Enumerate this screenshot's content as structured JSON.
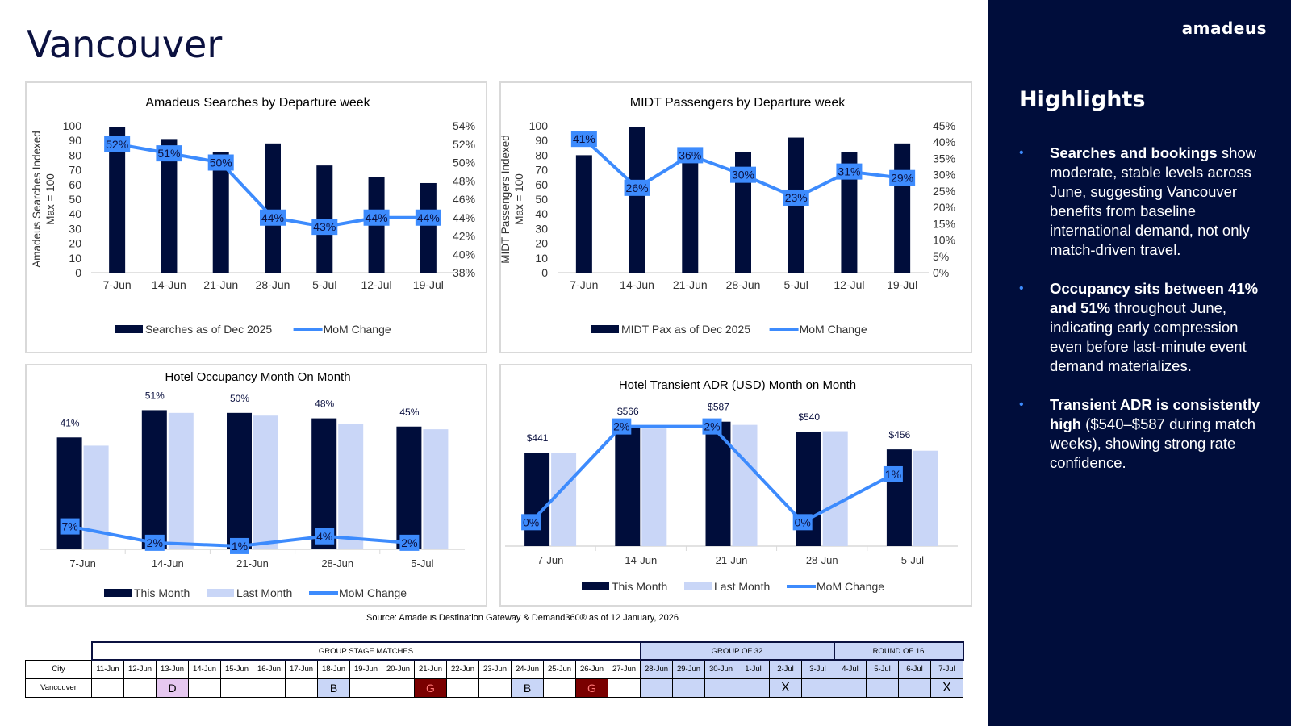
{
  "page_title": "Vancouver",
  "brand": "amadeus",
  "highlights": {
    "title": "Highlights",
    "items": [
      {
        "bold": "Searches and bookings",
        "text": " show moderate, stable levels across June, suggesting Vancouver benefits from baseline international demand, not only match-driven travel."
      },
      {
        "bold": "Occupancy sits between 41% and 51%",
        "text": " throughout June, indicating early compression even before last-minute event demand materializes."
      },
      {
        "bold": "Transient ADR is consistently high",
        "text": " ($540–$587 during match weeks), showing strong rate confidence."
      }
    ]
  },
  "source": "Source: Amadeus Destination Gateway & Demand360® as of 12 January, 2026",
  "colors": {
    "navy": "#000d3b",
    "line": "#3d8bfd",
    "light": "#c9d6f7",
    "grid": "#d9d9d9"
  },
  "chart_data": [
    {
      "type": "bar+line",
      "title": "Amadeus Searches by Departure week",
      "ylabel": "Amadeus Searches Indexed\nMax = 100",
      "ylabel_lines": [
        "Amadeus Searches Indexed",
        "Max = 100"
      ],
      "categories": [
        "7-Jun",
        "14-Jun",
        "21-Jun",
        "28-Jun",
        "5-Jul",
        "12-Jul",
        "19-Jul"
      ],
      "ylim": [
        0,
        100
      ],
      "yticks": [
        "100",
        "90",
        "80",
        "70",
        "60",
        "50",
        "40",
        "30",
        "20",
        "10",
        "0"
      ],
      "y2lim": [
        38,
        54
      ],
      "y2ticks": [
        "54%",
        "52%",
        "50%",
        "48%",
        "46%",
        "44%",
        "42%",
        "40%",
        "38%"
      ],
      "series": [
        {
          "name": "Searches as of Dec 2025",
          "kind": "bar",
          "values": [
            99,
            91,
            82,
            88,
            73,
            65,
            61
          ]
        },
        {
          "name": "MoM Change",
          "kind": "line",
          "axis": "right",
          "values": [
            52,
            51,
            50,
            44,
            43,
            44,
            44
          ],
          "labels": [
            "52%",
            "51%",
            "50%",
            "44%",
            "43%",
            "44%",
            "44%"
          ]
        }
      ],
      "legend": [
        "Searches as of Dec 2025",
        "MoM Change"
      ]
    },
    {
      "type": "bar+line",
      "title": "MIDT Passengers by Departure week",
      "ylabel": "MIDT Passengers Indexed\nMax = 100",
      "ylabel_lines": [
        "MIDT Passengers Indexed",
        "Max = 100"
      ],
      "categories": [
        "7-Jun",
        "14-Jun",
        "21-Jun",
        "28-Jun",
        "5-Jul",
        "12-Jul",
        "19-Jul"
      ],
      "ylim": [
        0,
        100
      ],
      "yticks": [
        "100",
        "90",
        "80",
        "70",
        "60",
        "50",
        "40",
        "30",
        "20",
        "10",
        "0"
      ],
      "y2lim": [
        0,
        45
      ],
      "y2ticks": [
        "45%",
        "40%",
        "35%",
        "30%",
        "25%",
        "20%",
        "15%",
        "10%",
        "5%",
        "0%"
      ],
      "series": [
        {
          "name": "MIDT Pax as of Dec 2025",
          "kind": "bar",
          "values": [
            80,
            99,
            79,
            82,
            92,
            82,
            88
          ]
        },
        {
          "name": "MoM Change",
          "kind": "line",
          "axis": "right",
          "values": [
            41,
            26,
            36,
            30,
            23,
            31,
            29
          ],
          "labels": [
            "41%",
            "26%",
            "36%",
            "30%",
            "23%",
            "31%",
            "29%"
          ]
        }
      ],
      "legend": [
        "MIDT Pax as of Dec 2025",
        "MoM Change"
      ]
    },
    {
      "type": "grouped-bar+line",
      "title": "Hotel Occupancy Month On Month",
      "categories": [
        "7-Jun",
        "14-Jun",
        "21-Jun",
        "28-Jun",
        "5-Jul"
      ],
      "ylim": [
        0,
        60
      ],
      "series": [
        {
          "name": "This Month",
          "kind": "bar",
          "values": [
            41,
            51,
            50,
            48,
            45
          ],
          "labels": [
            "41%",
            "51%",
            "50%",
            "48%",
            "45%"
          ]
        },
        {
          "name": "Last Month",
          "kind": "bar",
          "values": [
            38,
            50,
            49,
            46,
            44
          ]
        },
        {
          "name": "MoM Change",
          "kind": "line",
          "values": [
            7,
            2,
            1,
            4,
            2
          ],
          "labels": [
            "7%",
            "2%",
            "1%",
            "4%",
            "2%"
          ],
          "ylim": [
            0,
            50
          ]
        }
      ],
      "legend": [
        "This Month",
        "Last Month",
        "MoM Change"
      ]
    },
    {
      "type": "grouped-bar+line",
      "title": "Hotel Transient ADR (USD) Month on Month",
      "categories": [
        "7-Jun",
        "14-Jun",
        "21-Jun",
        "28-Jun",
        "5-Jul"
      ],
      "ylim": [
        0,
        700
      ],
      "series": [
        {
          "name": "This Month",
          "kind": "bar",
          "values": [
            441,
            566,
            587,
            540,
            456
          ],
          "labels": [
            "$441",
            "$566",
            "$587",
            "$540",
            "$456"
          ]
        },
        {
          "name": "Last Month",
          "kind": "bar",
          "values": [
            440,
            555,
            572,
            542,
            450
          ]
        },
        {
          "name": "MoM Change",
          "kind": "line",
          "values": [
            0,
            2,
            2,
            0,
            1
          ],
          "labels": [
            "0%",
            "2%",
            "2%",
            "0%",
            "1%"
          ],
          "ylim": [
            -0.5,
            2.6
          ]
        }
      ],
      "legend": [
        "This Month",
        "Last Month",
        "MoM Change"
      ]
    }
  ],
  "schedule": {
    "groups": [
      {
        "label": "GROUP STAGE MATCHES",
        "span": 17
      },
      {
        "label": "GROUP OF 32",
        "span": 6
      },
      {
        "label": "ROUND OF 16",
        "span": 4
      }
    ],
    "city_header": "City",
    "dates": [
      "11-Jun",
      "12-Jun",
      "13-Jun",
      "14-Jun",
      "15-Jun",
      "16-Jun",
      "17-Jun",
      "18-Jun",
      "19-Jun",
      "20-Jun",
      "21-Jun",
      "22-Jun",
      "23-Jun",
      "24-Jun",
      "25-Jun",
      "26-Jun",
      "27-Jun",
      "28-Jun",
      "29-Jun",
      "30-Jun",
      "1-Jul",
      "2-Jul",
      "3-Jul",
      "4-Jul",
      "5-Jul",
      "6-Jul",
      "7-Jul"
    ],
    "row": {
      "city": "Vancouver",
      "cells": [
        "",
        "",
        "D",
        "",
        "",
        "",
        "",
        "B",
        "",
        "",
        "G",
        "",
        "",
        "B",
        "",
        "G",
        "",
        "",
        "",
        "",
        "",
        "X",
        "",
        "",
        "",
        "",
        "X"
      ]
    }
  }
}
